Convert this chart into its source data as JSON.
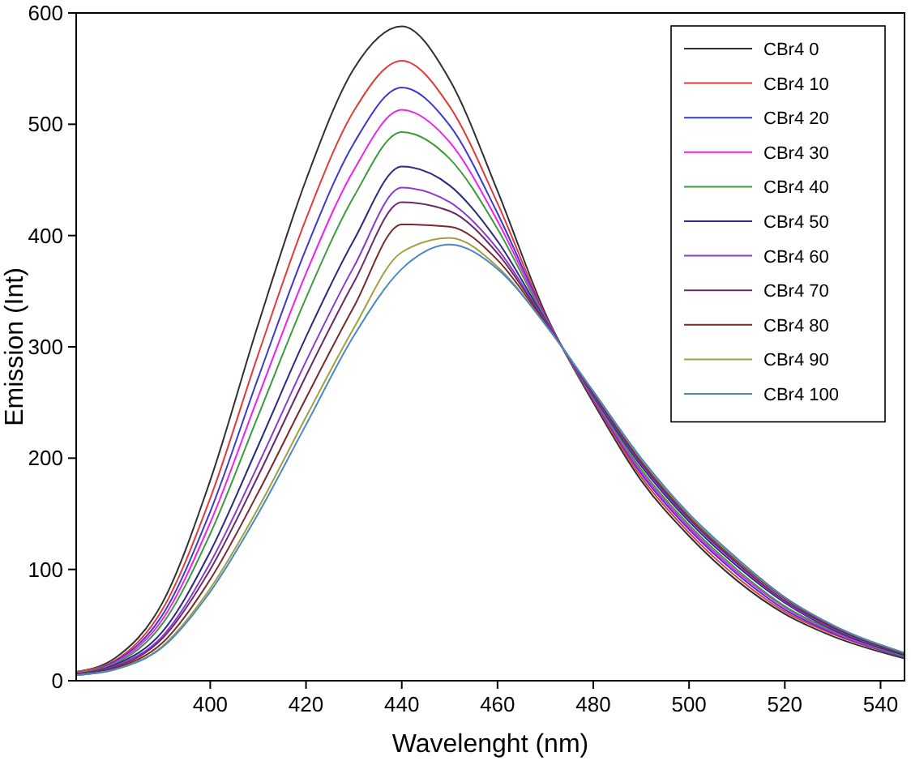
{
  "chart_data": {
    "type": "line",
    "xlabel": "Wavelenght (nm)",
    "ylabel": "Emission (Int)",
    "xlim": [
      372,
      545
    ],
    "ylim": [
      0,
      600
    ],
    "xticks": [
      400,
      420,
      440,
      460,
      480,
      500,
      520,
      540
    ],
    "yticks": [
      0,
      100,
      200,
      300,
      400,
      500,
      600
    ],
    "grid": false,
    "legend": "top right",
    "line_style": "solid",
    "x": [
      372,
      380,
      390,
      400,
      410,
      420,
      430,
      440,
      450,
      460,
      470,
      480,
      490,
      500,
      510,
      520,
      530,
      545
    ],
    "series": [
      {
        "name": "CBr4 0",
        "color": "#303030",
        "values": [
          8,
          20,
          70,
          180,
          320,
          450,
          550,
          588,
          540,
          440,
          330,
          250,
          180,
          130,
          90,
          60,
          40,
          20
        ]
      },
      {
        "name": "CBr4 10",
        "color": "#e03c3c",
        "values": [
          8,
          18,
          64,
          164,
          293,
          415,
          512,
          557,
          516,
          429,
          328,
          252,
          183,
          133,
          93,
          62,
          42,
          21
        ]
      },
      {
        "name": "CBr4 20",
        "color": "#3a3ad0",
        "values": [
          7,
          17,
          59,
          152,
          272,
          388,
          483,
          533,
          499,
          420,
          327,
          253,
          186,
          136,
          96,
          64,
          43,
          21
        ]
      },
      {
        "name": "CBr4 30",
        "color": "#f020f0",
        "values": [
          7,
          16,
          55,
          142,
          255,
          366,
          459,
          513,
          484,
          413,
          326,
          254,
          188,
          138,
          98,
          66,
          44,
          22
        ]
      },
      {
        "name": "CBr4 40",
        "color": "#3c9c3c",
        "values": [
          7,
          15,
          51,
          132,
          238,
          344,
          435,
          493,
          469,
          406,
          325,
          255,
          190,
          140,
          100,
          67,
          45,
          22
        ]
      },
      {
        "name": "CBr4 50",
        "color": "#2a2a80",
        "values": [
          6,
          14,
          44,
          116,
          211,
          309,
          396,
          462,
          445,
          395,
          324,
          256,
          193,
          143,
          103,
          70,
          46,
          23
        ]
      },
      {
        "name": "CBr4 60",
        "color": "#8a3ad0",
        "values": [
          6,
          13,
          40,
          106,
          194,
          287,
          372,
          443,
          430,
          388,
          323,
          257,
          195,
          145,
          105,
          71,
          47,
          24
        ]
      },
      {
        "name": "CBr4 70",
        "color": "#6a2a6a",
        "values": [
          6,
          12,
          38,
          100,
          184,
          274,
          358,
          430,
          422,
          384,
          322,
          258,
          196,
          146,
          106,
          72,
          48,
          24
        ]
      },
      {
        "name": "CBr4 80",
        "color": "#7a2a2a",
        "values": [
          5,
          11,
          34,
          91,
          169,
          254,
          336,
          410,
          408,
          378,
          321,
          259,
          198,
          148,
          108,
          74,
          49,
          24
        ]
      },
      {
        "name": "CBr4 90",
        "color": "#a0a040",
        "values": [
          5,
          10,
          31,
          83,
          155,
          237,
          317,
          385,
          398,
          372,
          320,
          260,
          199,
          149,
          109,
          75,
          50,
          25
        ]
      },
      {
        "name": "CBr4 100",
        "color": "#4a88c8",
        "values": [
          5,
          10,
          30,
          80,
          150,
          230,
          310,
          370,
          392,
          370,
          320,
          260,
          200,
          150,
          110,
          75,
          50,
          25
        ]
      }
    ]
  }
}
